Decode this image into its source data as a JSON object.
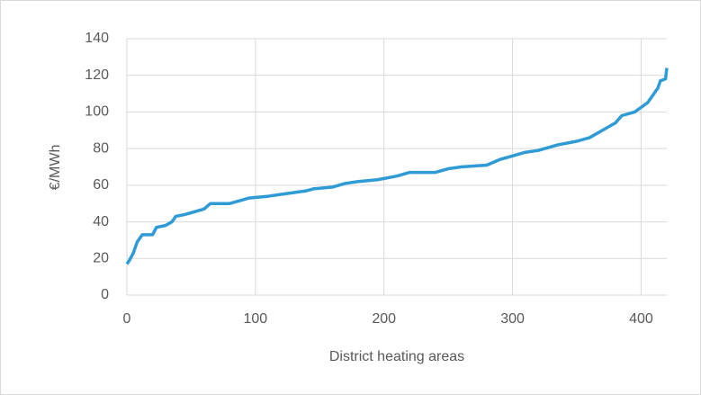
{
  "chart_data": {
    "type": "line",
    "x_label": "District heating areas",
    "y_label": "€/MWh",
    "x": [
      0,
      2,
      5,
      8,
      10,
      12,
      20,
      23,
      30,
      35,
      38,
      45,
      50,
      60,
      65,
      80,
      90,
      95,
      110,
      120,
      140,
      145,
      160,
      170,
      180,
      195,
      210,
      220,
      240,
      250,
      260,
      280,
      290,
      300,
      310,
      320,
      335,
      350,
      360,
      370,
      380,
      385,
      395,
      405,
      410,
      413,
      415,
      419,
      420
    ],
    "series": [
      {
        "color": "#2e9bd6",
        "values": [
          17,
          19,
          23,
          29,
          31,
          33,
          33,
          37,
          38,
          40,
          43,
          44,
          45,
          47,
          50,
          50,
          52,
          53,
          54,
          55,
          57,
          58,
          59,
          61,
          62,
          63,
          65,
          67,
          67,
          69,
          70,
          71,
          74,
          76,
          78,
          79,
          82,
          84,
          86,
          90,
          94,
          98,
          100,
          105,
          110,
          113,
          117,
          118,
          124
        ]
      }
    ],
    "xlim": [
      0,
      420
    ],
    "xticks": [
      0,
      100,
      200,
      300,
      400
    ],
    "ylim": [
      0,
      140
    ],
    "yticks": [
      0,
      20,
      40,
      60,
      80,
      100,
      120,
      140
    ],
    "grid": true
  }
}
